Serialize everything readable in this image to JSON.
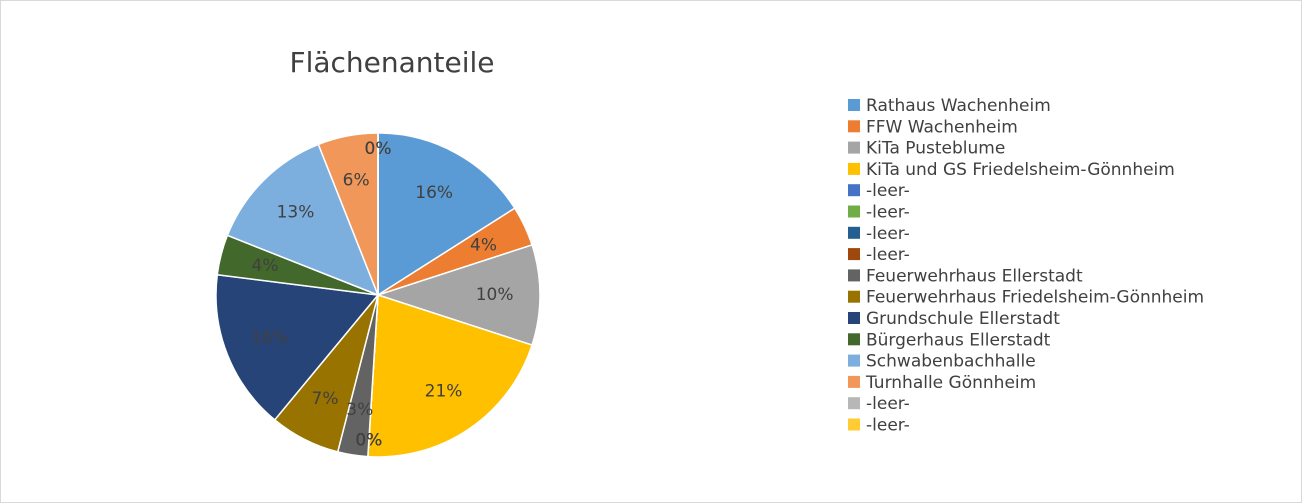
{
  "chart_data": {
    "type": "pie",
    "title": "Flächenanteile",
    "categories": [
      "Rathaus Wachenheim",
      "FFW Wachenheim",
      "KiTa Pusteblume",
      "KiTa und GS Friedelsheim-Gönnheim",
      "-leer-",
      "-leer-",
      "-leer-",
      "-leer-",
      "Feuerwehrhaus Ellerstadt",
      "Feuerwehrhaus Friedelsheim-Gönnheim",
      "Grundschule Ellerstadt",
      "Bürgerhaus Ellerstadt",
      "Schwabenbachhalle",
      "Turnhalle Gönnheim",
      "-leer-",
      "-leer-"
    ],
    "values": [
      16,
      4,
      10,
      21,
      0,
      0,
      0,
      0,
      3,
      7,
      16,
      4,
      13,
      6,
      0,
      0
    ],
    "value_labels": [
      "16%",
      "4%",
      "10%",
      "21%",
      "0%",
      "0%",
      "0%",
      "0%",
      "3%",
      "7%",
      "16%",
      "4%",
      "13%",
      "6%",
      "0%",
      "0%"
    ],
    "colors": [
      "#5b9bd5",
      "#ed7d31",
      "#a5a5a5",
      "#ffc000",
      "#4472c4",
      "#70ad47",
      "#255e91",
      "#9e480e",
      "#636363",
      "#997300",
      "#264478",
      "#43682b",
      "#7cafdd",
      "#f1975a",
      "#b7b7b7",
      "#ffcd33"
    ],
    "legend": "right"
  }
}
